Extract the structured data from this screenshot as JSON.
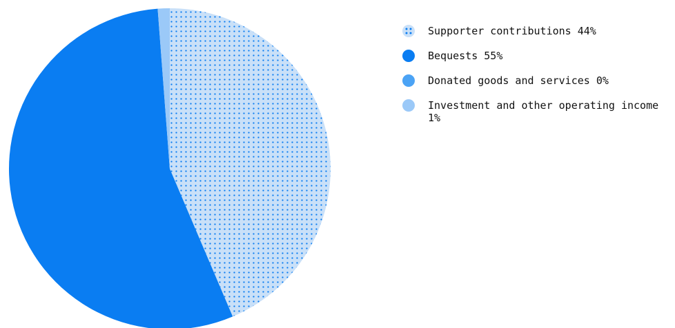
{
  "chart_data": {
    "type": "pie",
    "title": "",
    "slices": [
      {
        "label": "Supporter contributions",
        "percent_label": "44%",
        "value": 43.6,
        "color": "#c9e0f8",
        "pattern": "dots",
        "dot_color": "#0a7df2"
      },
      {
        "label": "Bequests",
        "percent_label": "55%",
        "value": 55.2,
        "color": "#0a7df2",
        "pattern": "none"
      },
      {
        "label": "Donated goods and services",
        "percent_label": "0%",
        "value": 0.0,
        "color": "#4ba3f5",
        "pattern": "none"
      },
      {
        "label": "Investment and other operating income",
        "percent_label": "1%",
        "value": 1.2,
        "color": "#9bc9f8",
        "pattern": "none"
      }
    ],
    "legend_position": "right"
  }
}
